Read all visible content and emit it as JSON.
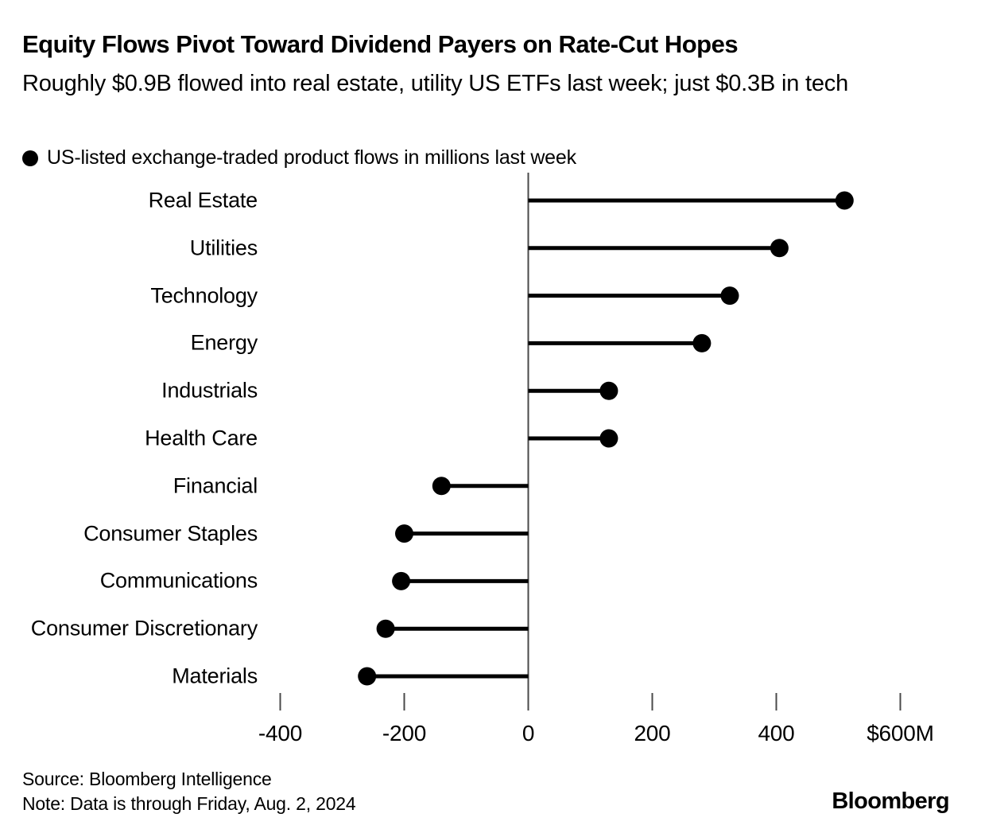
{
  "header": {
    "title": "Equity Flows Pivot Toward Dividend Payers on Rate-Cut Hopes",
    "subtitle": "Roughly $0.9B flowed into real estate, utility US ETFs last week; just $0.3B in tech"
  },
  "legend": {
    "label": "US-listed exchange-traded product flows in millions last week",
    "marker_color": "#000000"
  },
  "chart_data": {
    "type": "scatter",
    "style": "lollipop-horizontal",
    "title": "US-listed exchange-traded product flows in millions last week",
    "categories": [
      "Real Estate",
      "Utilities",
      "Technology",
      "Energy",
      "Industrials",
      "Health Care",
      "Financial",
      "Consumer Staples",
      "Communications",
      "Consumer Discretionary",
      "Materials"
    ],
    "values": [
      510,
      405,
      325,
      280,
      130,
      130,
      -140,
      -200,
      -205,
      -230,
      -260
    ],
    "unit": "USD millions",
    "xlabel": "",
    "ylabel": "",
    "xlim": [
      -500,
      700
    ],
    "xticks": [
      {
        "value": -400,
        "label": "-400"
      },
      {
        "value": -200,
        "label": "-200"
      },
      {
        "value": 0,
        "label": "0"
      },
      {
        "value": 200,
        "label": "200"
      },
      {
        "value": 400,
        "label": "400"
      },
      {
        "value": 600,
        "label": "$600M"
      }
    ],
    "grid": false,
    "legend_position": "top",
    "marker_color": "#000000",
    "axis_color": "#4a4a4a"
  },
  "footer": {
    "source": "Source: Bloomberg Intelligence",
    "note": "Note: Data is through Friday, Aug. 2, 2024",
    "brand": "Bloomberg"
  },
  "colors": {
    "background": "#ffffff",
    "text": "#000000",
    "accent": "#000000"
  }
}
